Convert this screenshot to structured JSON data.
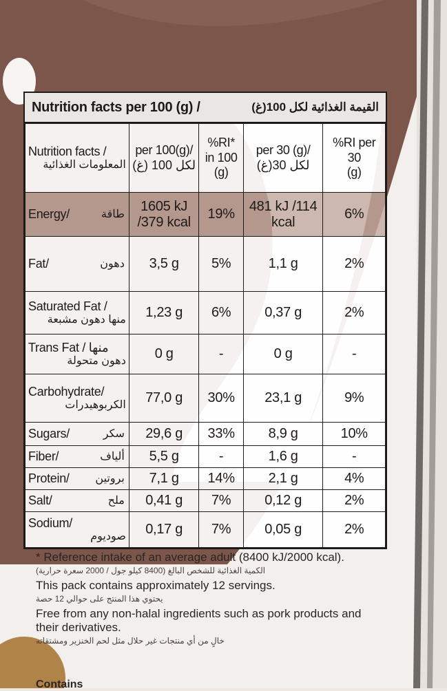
{
  "title": {
    "en": "Nutrition facts per 100 (g) /",
    "ar": "القيمة الغذائية لكل 100(غ)"
  },
  "headers": [
    {
      "en": "Nutrition facts /",
      "ar": "المعلومات الغذائية"
    },
    {
      "en": "per 100(g)/",
      "ar": "لكل 100 (غ)"
    },
    {
      "en": "%RI* in 100",
      "ar": "(g)"
    },
    {
      "en": "per 30 (g)/",
      "ar": "لكل 30(غ)"
    },
    {
      "en": "%RI per 30",
      "ar": "(g)"
    }
  ],
  "rows": [
    {
      "en": "Energy/",
      "ar": "طاقة",
      "per100": "1605 kJ /379 kcal",
      "ri100": "19%",
      "per30": "481 kJ /114 kcal",
      "ri30": "6%"
    },
    {
      "en": "Fat/",
      "ar": "دهون",
      "per100": "3,5 g",
      "ri100": "5%",
      "per30": "1,1 g",
      "ri30": "2%"
    },
    {
      "en": "Saturated Fat /",
      "ar": "منها دهون مشبعة",
      "per100": "1,23 g",
      "ri100": "6%",
      "per30": "0,37 g",
      "ri30": "2%"
    },
    {
      "en": "Trans Fat / منها",
      "ar": "دهون متحولة",
      "per100": "0 g",
      "ri100": "-",
      "per30": "0 g",
      "ri30": "-"
    },
    {
      "en": "Carbohydrate/",
      "ar": "الكربوهيدرات",
      "per100": "77,0 g",
      "ri100": "30%",
      "per30": "23,1 g",
      "ri30": "9%"
    },
    {
      "en": "Sugars/",
      "ar": "سكر",
      "per100": "29,6 g",
      "ri100": "33%",
      "per30": "8,9 g",
      "ri30": "10%"
    },
    {
      "en": "Fiber/",
      "ar": "ألياف",
      "per100": "5,5 g",
      "ri100": "-",
      "per30": "1,6 g",
      "ri30": "-"
    },
    {
      "en": "Protein/",
      "ar": "بروتين",
      "per100": "7,1 g",
      "ri100": "14%",
      "per30": "2,1 g",
      "ri30": "4%"
    },
    {
      "en": "Salt/",
      "ar": "ملح",
      "per100": "0,41 g",
      "ri100": "7%",
      "per30": "0,12 g",
      "ri30": "2%"
    },
    {
      "en": "Sodium/",
      "ar": "صوديوم",
      "per100": "0,17 g",
      "ri100": "7%",
      "per30": "0,05 g",
      "ri30": "2%"
    }
  ],
  "footer": {
    "reference_en": "* Reference intake of an average adult (8400 kJ/2000 kcal).",
    "reference_ar": "الكمية الغذائية للشخص البالغ (8400 كيلو جول / 2000 سعرة حرارية)",
    "servings_en": "This pack contains approximately 12 servings.",
    "servings_ar": "يحتوي هذا المنتج على حوالي 12 حصة",
    "halal_en": "Free from any non-halal ingredients such as pork products and their derivatives.",
    "halal_ar": "خالٍ من أي منتجات غير حلال مثل لحم الخنزير ومشتقاته",
    "cut_text": "Contains"
  }
}
